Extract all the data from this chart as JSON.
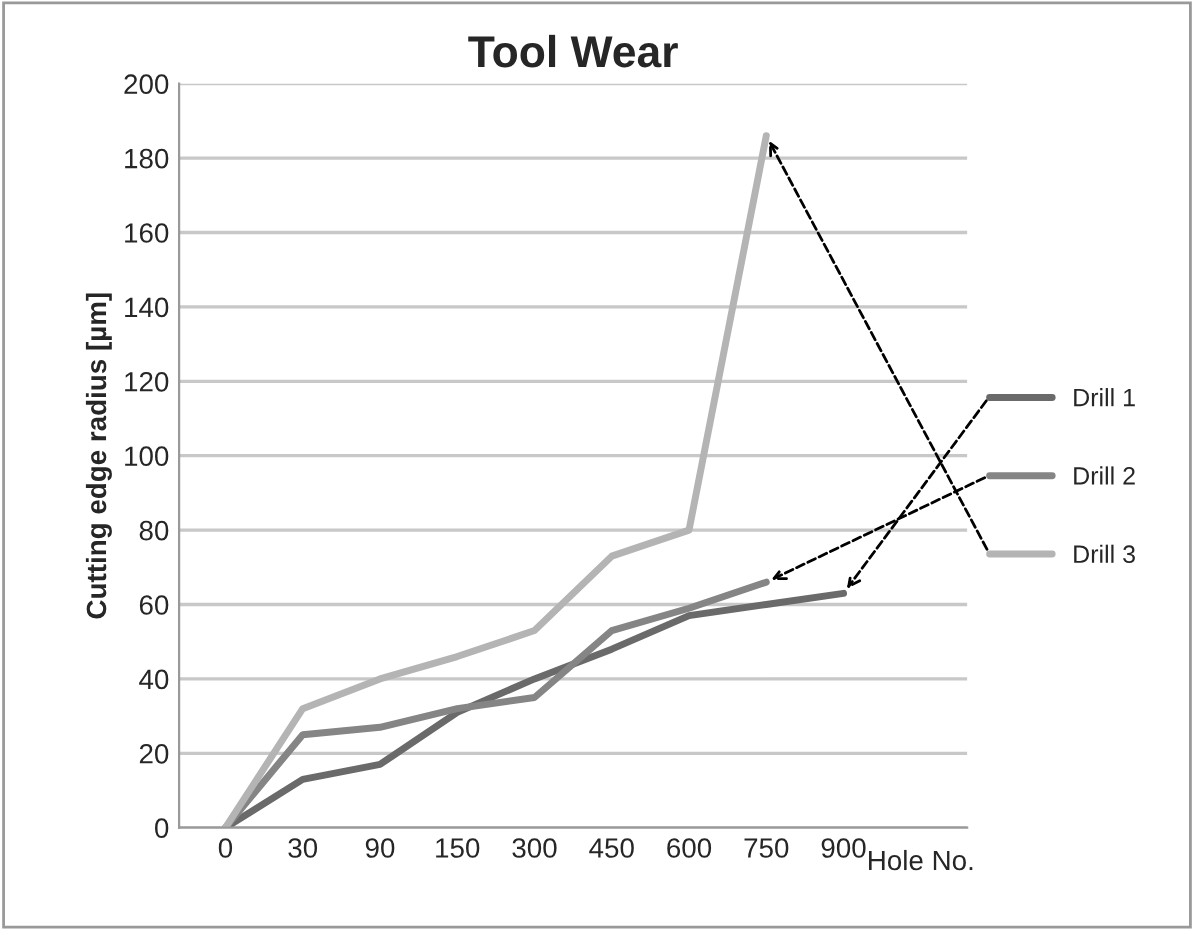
{
  "chart_data": {
    "type": "line",
    "title": "Tool Wear",
    "xlabel": "Hole No.",
    "ylabel": "Cutting edge radius [µm]",
    "categories": [
      "0",
      "30",
      "90",
      "150",
      "300",
      "450",
      "600",
      "750",
      "900"
    ],
    "series": [
      {
        "name": "Drill 1",
        "color": "#6a6a6a",
        "values": [
          0,
          13,
          17,
          31,
          40,
          48,
          57,
          60,
          63
        ]
      },
      {
        "name": "Drill 2",
        "color": "#858585",
        "values": [
          0,
          25,
          27,
          32,
          35,
          53,
          59,
          66,
          null
        ]
      },
      {
        "name": "Drill 3",
        "color": "#b4b4b4",
        "values": [
          0,
          32,
          40,
          46,
          53,
          73,
          80,
          186,
          null
        ]
      }
    ],
    "ylim": [
      0,
      200
    ],
    "yticks": [
      0,
      20,
      40,
      60,
      80,
      100,
      120,
      140,
      160,
      180,
      200
    ],
    "grid": "y",
    "legend": "right",
    "marker": "none"
  }
}
